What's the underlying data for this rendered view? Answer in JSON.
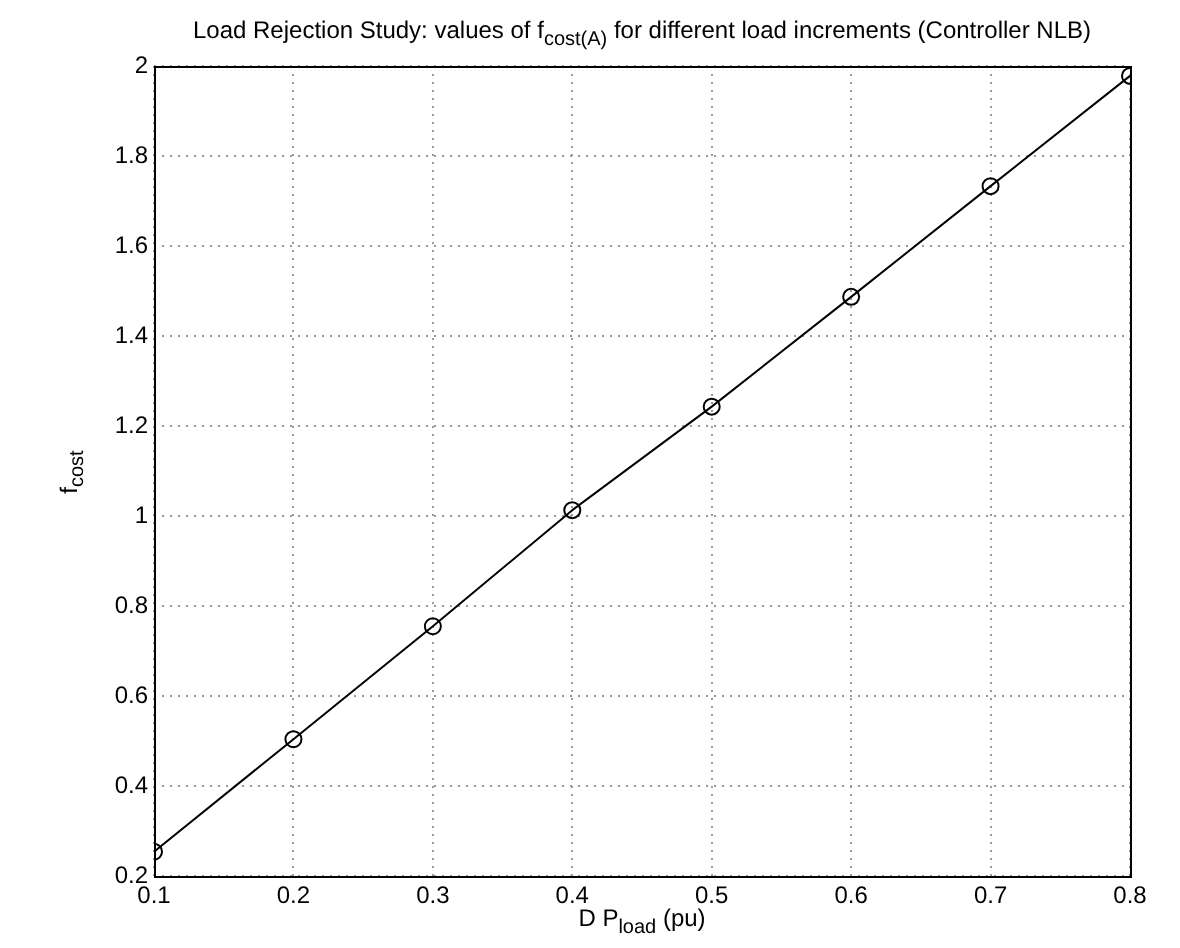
{
  "chart_data": {
    "type": "line",
    "title": "Load Rejection Study:  values of f$_{cost(A)}$ for different load increments (Controller NLB)",
    "xlabel": "D P$_{load}$ (pu)",
    "ylabel": "f$_{cost}$",
    "x": [
      0.1,
      0.2,
      0.3,
      0.4,
      0.5,
      0.6,
      0.7,
      0.8
    ],
    "series": [
      {
        "color": "#000000",
        "values": [
          0.254,
          0.504,
          0.755,
          1.013,
          1.243,
          1.487,
          1.733,
          1.978
        ]
      }
    ],
    "xlim": [
      0.1,
      0.8
    ],
    "xticks": [
      0.1,
      0.2,
      0.3,
      0.4,
      0.5,
      0.6,
      0.7,
      0.8
    ],
    "ylim": [
      0.2,
      2
    ],
    "yticks": [
      0.2,
      0.4,
      0.6,
      0.8,
      1,
      1.2,
      1.4,
      1.6,
      1.8,
      2
    ],
    "grid": true,
    "marker": "circle",
    "line_style": "solid",
    "legend": false
  }
}
